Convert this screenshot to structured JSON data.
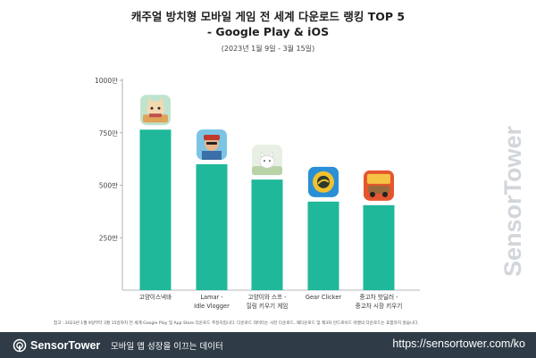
{
  "header": {
    "title_line1": "캐주얼 방치형 모바일 게임 전 세계 다운로드 랭킹 TOP 5",
    "title_line2": "- Google Play & iOS",
    "subtitle": "(2023년 1월 9일 - 3월 15일)"
  },
  "chart_data": {
    "type": "bar",
    "title": "캐주얼 방치형 모바일 게임 전 세계 다운로드 랭킹 TOP 5 - Google Play & iOS",
    "subtitle": "(2023년 1월 9일 - 3월 15일)",
    "categories": [
      [
        "고양이스낵바"
      ],
      [
        "Lamar -",
        "Idle Vlogger"
      ],
      [
        "고양이와 스프 -",
        "힐링 키우기 게임"
      ],
      [
        "Gear Clicker"
      ],
      [
        "중고차 핫딜러 -",
        "중고차 시장 키우기"
      ]
    ],
    "values": [
      765,
      600,
      527,
      422,
      405
    ],
    "ylim": [
      0,
      1000
    ],
    "yticks": [
      250,
      500,
      750,
      1000
    ],
    "ytick_labels": [
      "250만",
      "500만",
      "750만",
      "1000만"
    ],
    "bar_color": "#1fb89a",
    "grid": false,
    "app_icons": [
      "cat-snack-bar-icon",
      "lamar-idle-vlogger-icon",
      "cats-and-soup-icon",
      "gear-clicker-icon",
      "used-car-tycoon-icon"
    ]
  },
  "footnote": "참고 : 2023년 1월 9일부터 3월 15일까지 전 세계 Google Play 및 App Store 다운로드 추정치입니다. 다운로드 데이터는 사전 다운로드, 재다운로드 및 제3자 안드로이드 마켓의 다운로드는 포함하지 않습니다.",
  "watermark": "SensorTower",
  "footer": {
    "brand": "SensorTower",
    "tagline": "모바일 앱 성장을 이끄는 데이터",
    "url": "https://sensortower.com/ko"
  },
  "colors": {
    "accent": "#1fb89a",
    "footer_bg": "#2f3b47"
  }
}
